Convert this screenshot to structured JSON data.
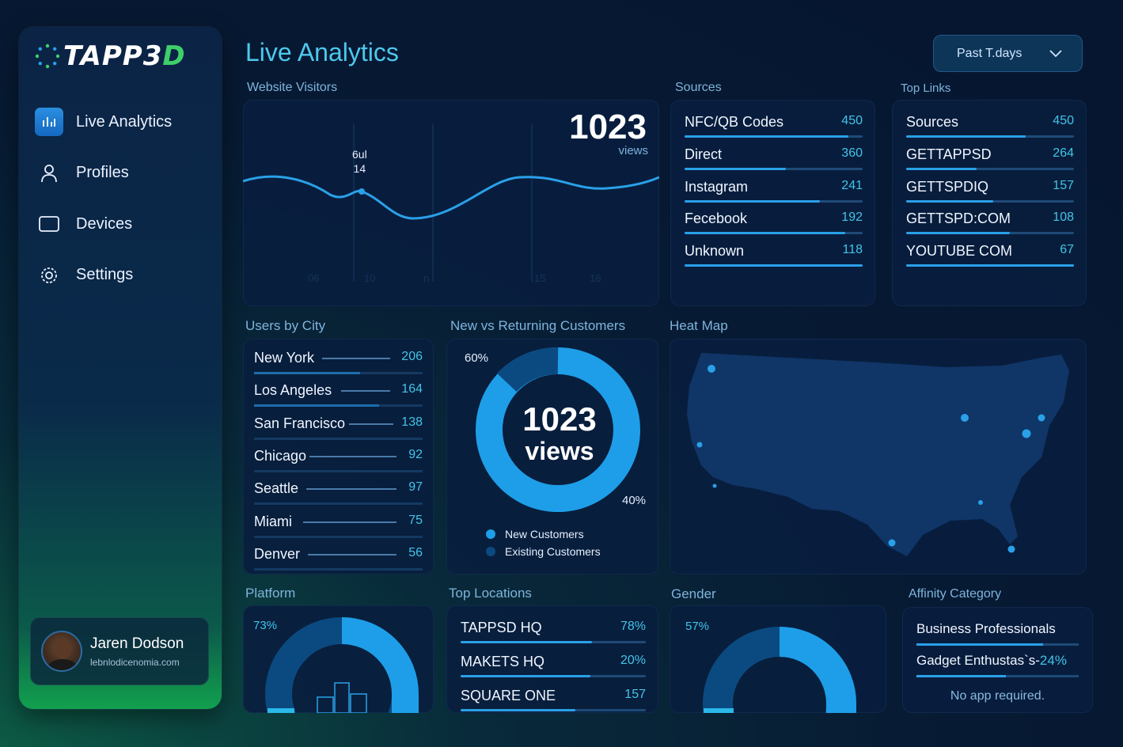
{
  "app": {
    "logo_main": "TAPP3",
    "logo_accent": "D"
  },
  "sidebar": {
    "items": [
      {
        "label": "Live Analytics",
        "icon": "chart-icon",
        "active": true
      },
      {
        "label": "Profiles",
        "icon": "user-icon"
      },
      {
        "label": "Devices",
        "icon": "device-icon"
      },
      {
        "label": "Settings",
        "icon": "gear-icon"
      }
    ],
    "profile": {
      "name": "Jaren Dodson",
      "email": "lebnlodicenomia.com"
    }
  },
  "header": {
    "title": "Live Analytics",
    "period": "Past T.days"
  },
  "visitors": {
    "label": "Website Visitors",
    "total": "1023",
    "unit": "views",
    "point_label_line1": "6ul",
    "point_label_line2": "14",
    "x_ticks": [
      "06",
      "10",
      "n",
      "15",
      "16"
    ]
  },
  "sources": {
    "label": "Sources",
    "items": [
      {
        "label": "NFC/QB Codes",
        "value": "450",
        "frac": 0.92
      },
      {
        "label": "Direct",
        "value": "360",
        "frac": 0.57
      },
      {
        "label": "Instagram",
        "value": "241",
        "frac": 0.76
      },
      {
        "label": "Fecebook",
        "value": "192",
        "frac": 0.9
      },
      {
        "label": "Unknown",
        "value": "118",
        "frac": 1.0
      }
    ]
  },
  "top_links": {
    "label": "Top Links",
    "items": [
      {
        "label": "Sources",
        "value": "450",
        "frac": 0.71
      },
      {
        "label": "GETTAPPSD",
        "value": "264",
        "frac": 0.42
      },
      {
        "label": "GETTSPDIQ",
        "value": "157",
        "frac": 0.52
      },
      {
        "label": "GETTSPD:COM",
        "value": "108",
        "frac": 0.62
      },
      {
        "label": "YOUTUBE COM",
        "value": "67",
        "frac": 1.0
      }
    ]
  },
  "cities": {
    "label": "Users by City",
    "items": [
      {
        "label": "New York",
        "value": "206",
        "frac": 0.63
      },
      {
        "label": "Los Angeles",
        "value": "164",
        "frac": 0.74
      },
      {
        "label": "San Francisco",
        "value": "138",
        "frac": 0.0
      },
      {
        "label": "Chicago",
        "value": "92",
        "frac": 0.0
      },
      {
        "label": "Seattle",
        "value": "97",
        "frac": 0.0
      },
      {
        "label": "Miami",
        "value": "75",
        "frac": 0.0
      },
      {
        "label": "Denver",
        "value": "56",
        "frac": 0.0
      }
    ]
  },
  "returning": {
    "label": "New vs Returning Customers",
    "center_number": "1023",
    "center_unit": "views",
    "pct_top": "60%",
    "pct_bottom": "40%",
    "legend": [
      {
        "label": "New Customers",
        "color": "#1e9ee8"
      },
      {
        "label": "Existing Customers",
        "color": "#0b4a80"
      }
    ]
  },
  "heatmap": {
    "label": "Heat Map"
  },
  "platform": {
    "label": "Platform",
    "pct": "73%"
  },
  "locations": {
    "label": "Top Locations",
    "items": [
      {
        "label": "TAPPSD HQ",
        "value": "78%",
        "frac": 0.71
      },
      {
        "label": "MAKETS HQ",
        "value": "20%",
        "frac": 0.7
      },
      {
        "label": "SQUARE ONE",
        "value": "157",
        "frac": 0.62
      }
    ]
  },
  "gender": {
    "label": "Gender",
    "pct": "57%"
  },
  "affinity": {
    "label": "Affinity Category",
    "items": [
      {
        "label": "Business Professionals",
        "frac": 0.78
      },
      {
        "label": "Gadget Enthustas`s-",
        "value": "24%",
        "frac": 0.55
      }
    ],
    "footer": "No app required."
  },
  "colors": {
    "accent": "#4ec8ee",
    "bar": "#2aa0e8",
    "track": "#1e4a78"
  }
}
